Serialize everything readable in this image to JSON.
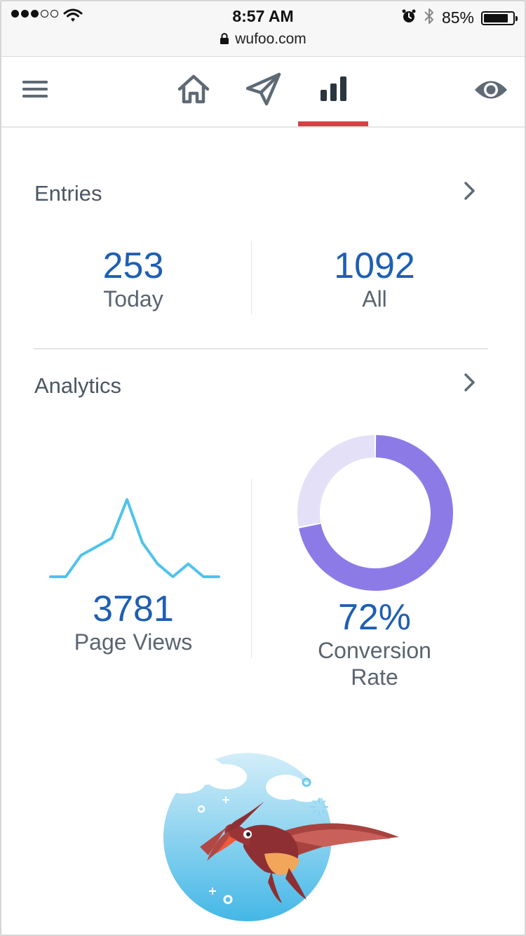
{
  "status_bar": {
    "signal": [
      true,
      true,
      true,
      false,
      false
    ],
    "time": "8:57 AM",
    "battery_percent": "85%",
    "battery_level": 0.85,
    "url": "wufoo.com"
  },
  "nav": {
    "items": [
      "menu-icon",
      "home-icon",
      "send-icon",
      "bar-chart-icon",
      "eye-icon"
    ],
    "active": "bar-chart-icon",
    "active_color": "#d14346"
  },
  "entries": {
    "title": "Entries",
    "today_value": "253",
    "today_label": "Today",
    "all_value": "1092",
    "all_label": "All"
  },
  "analytics": {
    "title": "Analytics",
    "page_views_value": "3781",
    "page_views_label": "Page Views",
    "conversion_value": "72%",
    "conversion_label_line1": "Conversion",
    "conversion_label_line2": "Rate"
  },
  "chart_data": [
    {
      "type": "line",
      "x": [
        0,
        1,
        2,
        3,
        4,
        5,
        6,
        7,
        8,
        9,
        10,
        11
      ],
      "values": [
        0,
        0,
        5,
        7,
        9,
        18,
        8,
        3,
        0,
        3,
        0,
        0
      ],
      "color": "#4fc3ea"
    },
    {
      "type": "pie",
      "values": [
        72,
        28
      ],
      "colors": [
        "#8c7be6",
        "#e4e0f8"
      ]
    }
  ],
  "colors": {
    "number_blue": "#1e5fb3",
    "label_gray": "#5a6470",
    "title_gray": "#4a5663"
  }
}
